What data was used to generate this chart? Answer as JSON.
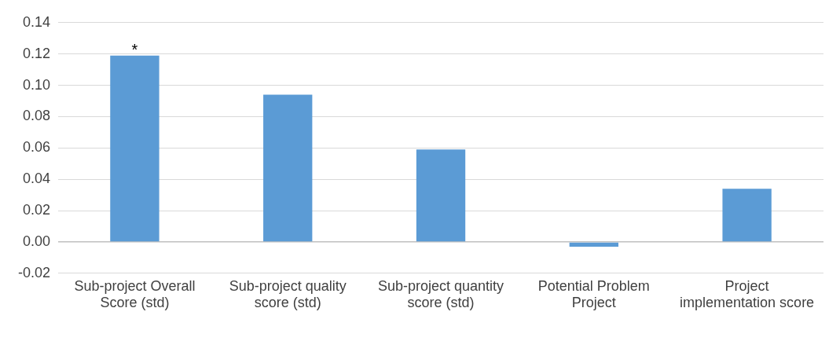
{
  "chart_data": {
    "type": "bar",
    "categories": [
      "Sub-project Overall Score (std)",
      "Sub-project quality score (std)",
      "Sub-project quantity score (std)",
      "Potential Problem Project",
      "Project implementation score"
    ],
    "values": [
      0.119,
      0.094,
      0.059,
      -0.003,
      0.034
    ],
    "color": "#5b9bd5",
    "ylim": [
      -0.02,
      0.14
    ],
    "yticks": [
      -0.02,
      {
        "value": 0,
        "label": "0.00"
      },
      0.02,
      0.04,
      0.06,
      0.08,
      {
        "value": 0.1,
        "label": "0.10"
      },
      0.12,
      0.14
    ],
    "grid": "y",
    "annotations": [
      {
        "text": "*",
        "x": "Sub-project Overall Score (std)",
        "y": 0.119
      }
    ]
  }
}
